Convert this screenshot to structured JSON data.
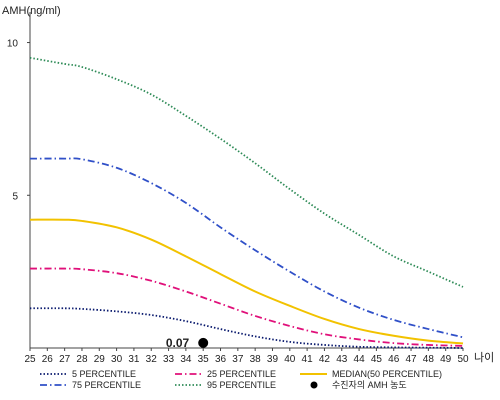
{
  "chart_data": {
    "type": "line",
    "ylabel": "AMH(ng/ml)",
    "xlabel": "나이",
    "xlim": [
      25,
      50
    ],
    "ylim": [
      0,
      11
    ],
    "x_ticks": [
      25,
      26,
      27,
      28,
      29,
      30,
      31,
      32,
      33,
      34,
      35,
      36,
      37,
      38,
      39,
      40,
      41,
      42,
      43,
      44,
      45,
      46,
      47,
      48,
      49,
      50
    ],
    "y_ticks": [
      5,
      10
    ],
    "series": [
      {
        "name": "5 PERCENTILE",
        "color": "#0a1a6e",
        "style": "dotted",
        "x": [
          25,
          27,
          28,
          30,
          32,
          34,
          36,
          38,
          40,
          42,
          44,
          46,
          48,
          50
        ],
        "values": [
          1.3,
          1.3,
          1.28,
          1.2,
          1.08,
          0.88,
          0.62,
          0.38,
          0.2,
          0.1,
          0.04,
          0.02,
          0.01,
          0.0
        ]
      },
      {
        "name": "25 PERCENTILE",
        "color": "#e0107a",
        "style": "dashdot",
        "x": [
          25,
          27,
          28,
          30,
          32,
          34,
          36,
          38,
          40,
          42,
          44,
          46,
          48,
          50
        ],
        "values": [
          2.6,
          2.6,
          2.58,
          2.45,
          2.2,
          1.85,
          1.45,
          1.05,
          0.72,
          0.45,
          0.28,
          0.16,
          0.1,
          0.07
        ]
      },
      {
        "name": "MEDIAN(50 PERCENTILE)",
        "color": "#f2c200",
        "style": "solid",
        "x": [
          25,
          27,
          28,
          30,
          32,
          34,
          36,
          38,
          40,
          42,
          44,
          46,
          48,
          50
        ],
        "values": [
          4.2,
          4.2,
          4.16,
          3.95,
          3.55,
          3.0,
          2.42,
          1.85,
          1.38,
          0.95,
          0.62,
          0.4,
          0.24,
          0.15
        ]
      },
      {
        "name": "75 PERCENTILE",
        "color": "#3050c8",
        "style": "dashdot",
        "x": [
          25,
          27,
          28,
          30,
          32,
          34,
          36,
          38,
          40,
          42,
          44,
          46,
          48,
          50
        ],
        "values": [
          6.2,
          6.2,
          6.18,
          5.9,
          5.4,
          4.75,
          3.95,
          3.2,
          2.5,
          1.85,
          1.32,
          0.92,
          0.62,
          0.35
        ]
      },
      {
        "name": "95 PERCENTILE",
        "color": "#2e8b57",
        "style": "dotted",
        "x": [
          25,
          27,
          28,
          30,
          32,
          34,
          36,
          38,
          40,
          42,
          44,
          46,
          48,
          50
        ],
        "values": [
          9.5,
          9.3,
          9.2,
          8.8,
          8.3,
          7.6,
          6.85,
          6.05,
          5.2,
          4.4,
          3.7,
          3.0,
          2.5,
          2.0
        ]
      }
    ],
    "patient": {
      "name": "수진자의 AMH 농도",
      "x": 35,
      "value": 0.07,
      "label": "0.07",
      "color": "#000000"
    },
    "legend": {
      "placement": "bottom",
      "items": [
        "5 PERCENTILE",
        "25 PERCENTILE",
        "MEDIAN(50 PERCENTILE)",
        "75 PERCENTILE",
        "95 PERCENTILE",
        "수진자의 AMH 농도"
      ]
    },
    "grid": false
  }
}
